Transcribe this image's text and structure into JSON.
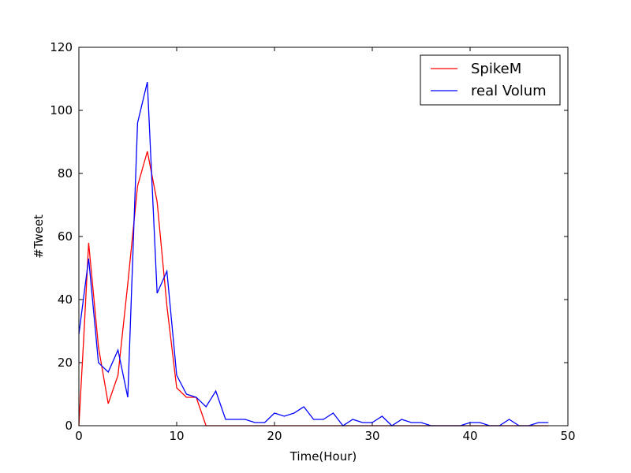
{
  "chart_data": {
    "type": "line",
    "title": "",
    "xlabel": "Time(Hour)",
    "ylabel": "#Tweet",
    "xlim": [
      0,
      50
    ],
    "ylim": [
      0,
      120
    ],
    "xticks": [
      0,
      10,
      20,
      30,
      40,
      50
    ],
    "yticks": [
      0,
      20,
      40,
      60,
      80,
      100,
      120
    ],
    "grid": false,
    "legend_position": "top-right",
    "series": [
      {
        "name": "SpikeM",
        "color": "#ff0000",
        "x": [
          0,
          0.5,
          1,
          2,
          3,
          4,
          5,
          6,
          7,
          8,
          9,
          10,
          11,
          12,
          13,
          14,
          15,
          16,
          17,
          18,
          19,
          20,
          21,
          22,
          23,
          24,
          25,
          26,
          27,
          28,
          29,
          30,
          31,
          32,
          33,
          34,
          35,
          36,
          37,
          38,
          39,
          40,
          41,
          42,
          43,
          44,
          45,
          46,
          47,
          48
        ],
        "y": [
          0,
          28,
          58,
          25,
          7,
          16,
          45,
          76,
          87,
          71,
          38,
          12,
          9,
          9,
          0,
          0,
          0,
          0,
          0,
          0,
          0,
          0,
          0,
          0,
          0,
          0,
          0,
          0,
          0,
          0,
          0,
          0,
          0,
          0,
          0,
          0,
          0,
          0,
          0,
          0,
          0,
          0,
          0,
          0,
          0,
          0,
          0,
          0,
          0,
          0
        ]
      },
      {
        "name": "real Volum",
        "color": "#0000ff",
        "x": [
          0,
          1,
          2,
          3,
          4,
          5,
          6,
          7,
          8,
          9,
          10,
          11,
          12,
          13,
          14,
          15,
          16,
          17,
          18,
          19,
          20,
          21,
          22,
          23,
          24,
          25,
          26,
          27,
          28,
          29,
          30,
          31,
          32,
          33,
          34,
          35,
          36,
          37,
          38,
          39,
          40,
          41,
          42,
          43,
          44,
          45,
          46,
          47,
          48
        ],
        "y": [
          29,
          53,
          20,
          17,
          24,
          9,
          96,
          109,
          42,
          49,
          16,
          10,
          9,
          6,
          11,
          2,
          2,
          2,
          1,
          1,
          4,
          3,
          4,
          6,
          2,
          2,
          4,
          0,
          2,
          1,
          1,
          3,
          0,
          2,
          1,
          1,
          0,
          0,
          0,
          0,
          1,
          1,
          0,
          0,
          2,
          0,
          0,
          1,
          1
        ]
      }
    ]
  }
}
